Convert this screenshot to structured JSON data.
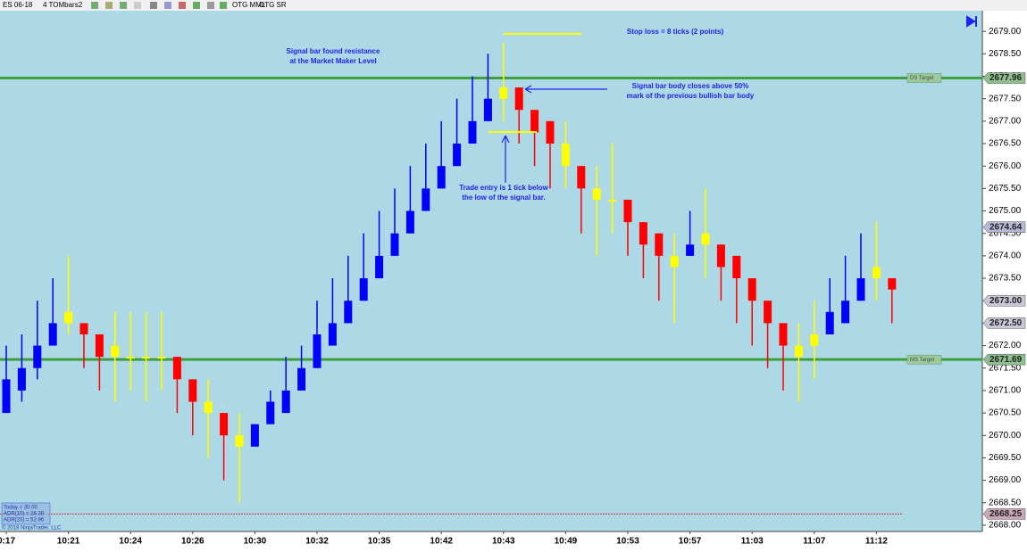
{
  "toolbar": [
    "ES 06-18",
    "4 TOMbars2",
    "OTG MML",
    "OTG SR"
  ],
  "info_box": [
    "Today = 30.00",
    "ADR(10) = 26.38",
    "ADR(20) = 52.96"
  ],
  "copyright": "© 2018 NinjaTrader, LLC",
  "chart_data": {
    "type": "candlestick",
    "categories": [
      "0:17",
      null,
      null,
      null,
      "10:21",
      null,
      null,
      null,
      "10:24",
      null,
      null,
      null,
      "10:26",
      null,
      null,
      null,
      "10:30",
      null,
      null,
      null,
      "10:32",
      null,
      null,
      null,
      "10:35",
      null,
      null,
      null,
      "10:42",
      null,
      null,
      null,
      "10:43",
      null,
      null,
      null,
      "10:49",
      null,
      null,
      null,
      "10:53",
      null,
      null,
      null,
      "10:57",
      null,
      null,
      null,
      "11:03",
      null,
      null,
      null,
      "11:07",
      null,
      null,
      null,
      "11:12",
      null
    ],
    "open": [
      2670.5,
      2671,
      2671.5,
      2672,
      2672.5,
      2672.5,
      2672.25,
      2672,
      2671.75,
      2671.75,
      2671.75,
      2671.75,
      2671.25,
      2670.75,
      2670.5,
      2670,
      2669.75,
      2670.25,
      2670.5,
      2671,
      2671.5,
      2672,
      2672.5,
      2673,
      2673.5,
      2674,
      2674.5,
      2675,
      2675.5,
      2676,
      2676.5,
      2677,
      2677.5,
      2677.75,
      2677.25,
      2677,
      2676.5,
      2676,
      2675.5,
      2675.25,
      2675.25,
      2674.75,
      2674.5,
      2674,
      2674,
      2674.5,
      2674.25,
      2674,
      2673.5,
      2673,
      2672.5,
      2672,
      2672,
      2672.25,
      2672.5,
      2673,
      2673.75,
      2673.5
    ],
    "high": [
      2672,
      2672.25,
      2673,
      2673.5,
      2674,
      2672.5,
      2672.25,
      2672.75,
      2672.75,
      2672.75,
      2672.75,
      2671.75,
      2671.25,
      2671.25,
      2670.5,
      2670.5,
      2670.25,
      2671,
      2671.75,
      2672,
      2673,
      2673.5,
      2674,
      2674.5,
      2675,
      2675.5,
      2676,
      2676.5,
      2677,
      2677.5,
      2678,
      2678.5,
      2678.75,
      2677.75,
      2677.25,
      2677,
      2677,
      2676,
      2676,
      2676.5,
      2675.25,
      2674.75,
      2674.5,
      2674.5,
      2675,
      2675.5,
      2674.25,
      2674,
      2673.5,
      2673,
      2672.5,
      2672.5,
      2673,
      2673.5,
      2674,
      2674.5,
      2674.75,
      2673.5
    ],
    "low": [
      2670.5,
      2670.75,
      2671.25,
      2672,
      2672.25,
      2671.5,
      2671,
      2670.75,
      2671,
      2670.75,
      2671,
      2670.5,
      2670,
      2669.5,
      2669,
      2668.5,
      2669.75,
      2670.25,
      2670.5,
      2671,
      2671.5,
      2672,
      2672.5,
      2673,
      2673.5,
      2674,
      2674.5,
      2675,
      2675.5,
      2676,
      2676.5,
      2677,
      2677,
      2676.5,
      2676,
      2675.5,
      2675.5,
      2674.5,
      2674,
      2674.5,
      2674,
      2673.5,
      2673,
      2672.5,
      2674,
      2673.5,
      2673,
      2672.5,
      2672,
      2671.5,
      2671,
      2670.75,
      2671.25,
      2672.25,
      2672.5,
      2673,
      2673,
      2672.5
    ],
    "close": [
      2671.25,
      2671.5,
      2672,
      2672.5,
      2672.75,
      2672.25,
      2671.75,
      2671.75,
      2671.75,
      2671.75,
      2671.75,
      2671.25,
      2670.75,
      2670.5,
      2670,
      2669.75,
      2670.25,
      2670.75,
      2671,
      2671.5,
      2672.25,
      2672.5,
      2673,
      2673.5,
      2674,
      2674.5,
      2675,
      2675.5,
      2676,
      2676.5,
      2677,
      2677.5,
      2677.75,
      2677.25,
      2676.75,
      2676.5,
      2676,
      2675.5,
      2675.25,
      2675.25,
      2674.75,
      2674.25,
      2674,
      2673.75,
      2674.25,
      2674.25,
      2673.75,
      2673.5,
      2673,
      2672.5,
      2672,
      2671.75,
      2672.25,
      2672.75,
      2673,
      2673.5,
      2673.5,
      2673.25
    ],
    "colors": [
      "#0000ff",
      "#0000ff",
      "#0000ff",
      "#0000ff",
      "#ffff00",
      "#ff0000",
      "#ff0000",
      "#ffff00",
      "#ffff00",
      "#ffff00",
      "#ffff00",
      "#ff0000",
      "#ff0000",
      "#ffff00",
      "#ff0000",
      "#ffff00",
      "#0000ff",
      "#0000ff",
      "#0000ff",
      "#0000ff",
      "#0000ff",
      "#0000ff",
      "#0000ff",
      "#0000ff",
      "#0000ff",
      "#0000ff",
      "#0000ff",
      "#0000ff",
      "#0000ff",
      "#0000ff",
      "#0000ff",
      "#0000ff",
      "#ffff00",
      "#ff0000",
      "#ff0000",
      "#ff0000",
      "#ffff00",
      "#ff0000",
      "#ffff00",
      "#ffff00",
      "#ff0000",
      "#ff0000",
      "#ff0000",
      "#ffff00",
      "#0000ff",
      "#ffff00",
      "#ff0000",
      "#ff0000",
      "#ff0000",
      "#ff0000",
      "#ff0000",
      "#ffff00",
      "#ffff00",
      "#0000ff",
      "#0000ff",
      "#0000ff",
      "#ffff00",
      "#ff0000"
    ],
    "ylim": [
      2667.86,
      2679.46
    ],
    "yticks": [
      {
        "value": 2668,
        "label": "2668.00"
      },
      {
        "value": 2668.5,
        "label": "2668.50"
      },
      {
        "value": 2669,
        "label": "2669.00"
      },
      {
        "value": 2669.5,
        "label": "2669.50"
      },
      {
        "value": 2670,
        "label": "2670.00"
      },
      {
        "value": 2670.5,
        "label": "2670.50"
      },
      {
        "value": 2671,
        "label": "2671.00"
      },
      {
        "value": 2671.5,
        "label": "2671.50"
      },
      {
        "value": 2672,
        "label": "2672.00"
      },
      {
        "value": 2672.5,
        "label": "2672.50"
      },
      {
        "value": 2673,
        "label": "2673.00"
      },
      {
        "value": 2673.5,
        "label": "2673.50"
      },
      {
        "value": 2674,
        "label": "2674.00"
      },
      {
        "value": 2674.5,
        "label": "2674.50"
      },
      {
        "value": 2675,
        "label": "2675.00"
      },
      {
        "value": 2675.5,
        "label": "2675.50"
      },
      {
        "value": 2676,
        "label": "2676.00"
      },
      {
        "value": 2676.5,
        "label": "2676.50"
      },
      {
        "value": 2677,
        "label": "2677.00"
      },
      {
        "value": 2677.5,
        "label": "2677.50"
      },
      {
        "value": 2678,
        "label": "2678.00"
      },
      {
        "value": 2678.5,
        "label": "2678.50"
      },
      {
        "value": 2679,
        "label": "2679.00"
      }
    ],
    "levels": [
      {
        "name": "DS Target",
        "value": 2677.96,
        "color": "#3f9f3f"
      },
      {
        "name": "MS Target",
        "value": 2671.69,
        "color": "#3f9f3f"
      }
    ],
    "price_markers": [
      {
        "value": 2677.96,
        "label": "2677.96",
        "color": "#8fbf8f"
      },
      {
        "value": 2674.64,
        "label": "2674.64",
        "color": "#b8b8d8"
      },
      {
        "value": 2673,
        "label": "2673.00",
        "color": "#c8c8d8"
      },
      {
        "value": 2672.5,
        "label": "2672.50",
        "color": "#c8c8d8"
      },
      {
        "value": 2671.69,
        "label": "2671.69",
        "color": "#8fbf8f"
      },
      {
        "value": 2668.25,
        "label": "2668.25",
        "color": "#c8a8b8"
      }
    ],
    "reference_line": {
      "value": 2668.25,
      "color": "#cc3333"
    },
    "annotations": {
      "resistance": [
        "Signal bar found resistance",
        "at the Market Maker Level"
      ],
      "stop": [
        "Stop loss = 8 ticks (2 points)"
      ],
      "signal": [
        "Signal bar body closes above 50%",
        "mark of the previous bullish bar body"
      ],
      "entry": [
        "Trade entry is 1 tick below",
        "the low of the signal bar."
      ]
    }
  }
}
